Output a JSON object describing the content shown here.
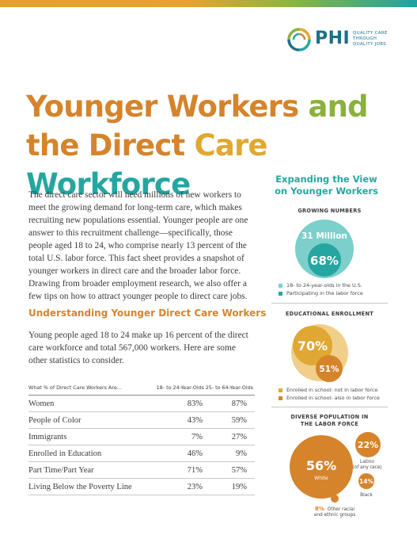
{
  "logo": {
    "name": "PHI",
    "tagline": [
      "QUALITY CARE",
      "THROUGH",
      "QUALITY JOBS"
    ]
  },
  "title": {
    "line1_a": "Younger Workers",
    "line1_b": "and",
    "line2_a": "the Direct",
    "line2_b": "Care",
    "line2_c": "Workforce"
  },
  "intro": "The direct care sector will need millions of new workers to meet the growing demand for long-term care, which makes recruiting new populations essential. Younger people are one answer to this recruitment challenge—specifically, those people aged 18 to 24, who comprise nearly 13 percent of the total U.S. labor force. This fact sheet provides a snapshot of younger workers in direct care and the broader labor force. Drawing from broader employment research, we also offer a few tips on how to attract younger people to direct care jobs.",
  "section": {
    "heading": "Understanding Younger Direct Care Workers",
    "body": "Young people aged 18 to 24 make up 16 percent of the direct care workforce and total 567,000 workers. Here are some other statistics to consider."
  },
  "table": {
    "headers": [
      "What % of Direct Care Workers Are...",
      "18- to 24-Year-Olds",
      "25- to 64-Year-Olds"
    ],
    "rows": [
      [
        "Women",
        "83%",
        "87%"
      ],
      [
        "People of Color",
        "43%",
        "59%"
      ],
      [
        "Immigrants",
        "7%",
        "27%"
      ],
      [
        "Enrolled in Education",
        "46%",
        "9%"
      ],
      [
        "Part Time/Part Year",
        "71%",
        "57%"
      ],
      [
        "Living Below the Poverty Line",
        "23%",
        "19%"
      ]
    ]
  },
  "panel": {
    "title_line1": "Expanding the View",
    "title_line2": "on Younger Workers",
    "growing": {
      "heading": "GROWING NUMBERS",
      "outer_label": "31 Million",
      "inner_label": "68%",
      "legend": [
        "18- to 24-year-olds in the U.S.",
        "Participating in the labor force"
      ]
    },
    "education": {
      "heading": "EDUCATIONAL ENROLLMENT",
      "big_label": "70%",
      "small_label": "51%",
      "legend": [
        "Enrolled in school: not in labor force",
        "Enrolled in school: also in labor force"
      ]
    },
    "diverse": {
      "heading_line1": "DIVERSE POPULATION IN",
      "heading_line2": "THE LABOR FORCE",
      "white_pct": "56%",
      "white_label": "White",
      "latino_pct": "22%",
      "latino_label_1": "Latino",
      "latino_label_2": "(of any race)",
      "black_pct": "14%",
      "black_label": "Black",
      "other_pct": "8%",
      "other_label_1": "Other racial",
      "other_label_2": "and ethnic groups"
    }
  },
  "colors": {
    "orange": "#d5842b",
    "gold": "#e0a832",
    "green": "#8bb13d",
    "teal": "#25a6a1",
    "light_teal": "#7ccfcb",
    "light_gold": "#f0cf8a"
  }
}
